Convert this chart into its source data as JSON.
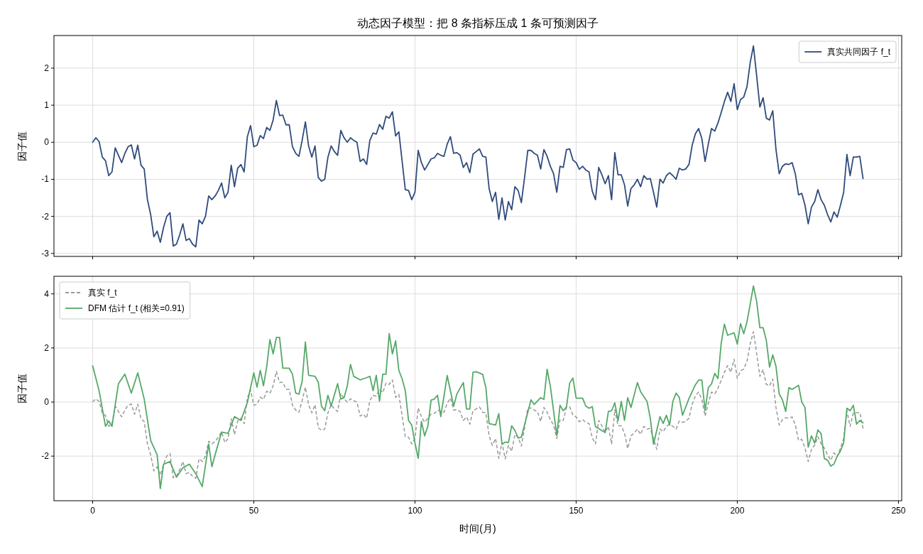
{
  "chart_data": [
    {
      "type": "line",
      "title": "动态因子模型：把 8 条指标压成 1 条可预测因子",
      "ylabel": "因子值",
      "xlim": [
        -12,
        251
      ],
      "xticks": [
        0,
        50,
        100,
        150,
        200,
        250
      ],
      "ylim": [
        -3.08,
        2.88
      ],
      "yticks": [
        -3,
        -2,
        -1,
        0,
        1,
        2
      ],
      "tick_labels": "y",
      "grid": true,
      "legend": "top right",
      "x": [
        0,
        1,
        2,
        3,
        4,
        5,
        6,
        7,
        8,
        9,
        10,
        11,
        12,
        13,
        14,
        15,
        16,
        17,
        18,
        19,
        20,
        21,
        22,
        23,
        24,
        25,
        26,
        27,
        28,
        29,
        30,
        31,
        32,
        33,
        34,
        35,
        36,
        37,
        38,
        39,
        40,
        41,
        42,
        43,
        44,
        45,
        46,
        47,
        48,
        49,
        50,
        51,
        52,
        53,
        54,
        55,
        56,
        57,
        58,
        59,
        60,
        61,
        62,
        63,
        64,
        65,
        66,
        67,
        68,
        69,
        70,
        71,
        72,
        73,
        74,
        75,
        76,
        77,
        78,
        79,
        80,
        81,
        82,
        83,
        84,
        85,
        86,
        87,
        88,
        89,
        90,
        91,
        92,
        93,
        94,
        95,
        96,
        97,
        98,
        99,
        100,
        101,
        102,
        103,
        104,
        105,
        106,
        107,
        108,
        109,
        110,
        111,
        112,
        113,
        114,
        115,
        116,
        117,
        118,
        119,
        120,
        121,
        122,
        123,
        124,
        125,
        126,
        127,
        128,
        129,
        130,
        131,
        132,
        133,
        134,
        135,
        136,
        137,
        138,
        139,
        140,
        141,
        142,
        143,
        144,
        145,
        146,
        147,
        148,
        149,
        150,
        151,
        152,
        153,
        154,
        155,
        156,
        157,
        158,
        159,
        160,
        161,
        162,
        163,
        164,
        165,
        166,
        167,
        168,
        169,
        170,
        171,
        172,
        173,
        174,
        175,
        176,
        177,
        178,
        179,
        180,
        181,
        182,
        183,
        184,
        185,
        186,
        187,
        188,
        189,
        190,
        191,
        192,
        193,
        194,
        195,
        196,
        197,
        198,
        199,
        200,
        201,
        202,
        203,
        204,
        205,
        206,
        207,
        208,
        209,
        210,
        211,
        212,
        213,
        214,
        215,
        216,
        217,
        218,
        219,
        220,
        221,
        222,
        223,
        224,
        225,
        226,
        227,
        228,
        229,
        230,
        231,
        232,
        233,
        234,
        235,
        236,
        237,
        238,
        239
      ],
      "series": [
        {
          "name": "真实共同因子 f_t",
          "color": "#2f4b7c",
          "line_style": "solid",
          "values": [
            0,
            0.12,
            0.02,
            -0.4,
            -0.5,
            -0.9,
            -0.8,
            -0.15,
            -0.35,
            -0.55,
            -0.3,
            -0.12,
            -0.07,
            -0.45,
            -0.08,
            -0.62,
            -0.72,
            -1.55,
            -1.95,
            -2.55,
            -2.4,
            -2.7,
            -2.3,
            -2.0,
            -1.9,
            -2.8,
            -2.75,
            -2.5,
            -2.2,
            -2.65,
            -2.6,
            -2.75,
            -2.82,
            -2.1,
            -2.2,
            -2.0,
            -1.45,
            -1.55,
            -1.45,
            -1.3,
            -1.1,
            -1.5,
            -1.35,
            -0.62,
            -1.2,
            -0.7,
            -0.6,
            -0.8,
            0.15,
            0.45,
            -0.12,
            -0.08,
            0.18,
            0.1,
            0.4,
            0.32,
            0.6,
            1.13,
            0.72,
            0.73,
            0.47,
            0.47,
            -0.12,
            -0.3,
            -0.38,
            0.05,
            0.55,
            -0.1,
            -0.4,
            -0.1,
            -0.95,
            -1.05,
            -1.0,
            -0.4,
            -0.1,
            -0.25,
            -0.35,
            0.32,
            0.12,
            0.0,
            0.12,
            0.05,
            0.0,
            -0.52,
            -0.45,
            -0.6,
            0.05,
            0.25,
            0.22,
            0.48,
            0.35,
            0.7,
            0.65,
            0.82,
            0.17,
            0.28,
            -0.5,
            -1.28,
            -1.3,
            -1.55,
            -1.35,
            -0.22,
            -0.55,
            -0.75,
            -0.6,
            -0.45,
            -0.42,
            -0.3,
            -0.35,
            -0.38,
            -0.05,
            0.15,
            -0.3,
            -0.28,
            -0.35,
            -0.68,
            -0.55,
            -0.82,
            -0.32,
            -0.25,
            -0.18,
            -0.38,
            -0.4,
            -1.25,
            -1.6,
            -1.35,
            -2.08,
            -1.5,
            -2.1,
            -1.6,
            -1.82,
            -1.2,
            -1.3,
            -1.63,
            -0.95,
            -0.22,
            -0.22,
            -0.3,
            -0.35,
            -0.72,
            -0.2,
            -0.38,
            -0.65,
            -0.85,
            -1.35,
            -0.65,
            -0.68,
            -0.2,
            -0.18,
            -0.48,
            -0.55,
            -0.73,
            -0.65,
            -0.75,
            -0.8,
            -1.32,
            -1.55,
            -0.68,
            -0.88,
            -1.12,
            -0.9,
            -1.55,
            -0.28,
            -0.88,
            -0.88,
            -1.15,
            -1.72,
            -1.25,
            -1.15,
            -1.0,
            -1.2,
            -0.9,
            -1.0,
            -0.98,
            -1.35,
            -1.75,
            -1.0,
            -1.1,
            -0.9,
            -0.82,
            -0.9,
            -1.0,
            -0.7,
            -0.75,
            -0.72,
            -0.6,
            -0.08,
            0.23,
            0.37,
            0.1,
            -0.52,
            -0.05,
            0.37,
            0.3,
            0.52,
            0.8,
            1.1,
            1.35,
            1.1,
            1.58,
            0.88,
            1.15,
            1.22,
            1.5,
            2.15,
            2.6,
            1.8,
            0.95,
            1.2,
            0.65,
            0.6,
            0.85,
            -0.2,
            -0.85,
            -0.65,
            -0.58,
            -0.6,
            -0.55,
            -0.85,
            -1.42,
            -1.38,
            -1.7,
            -2.2,
            -1.75,
            -1.6,
            -1.28,
            -1.55,
            -1.7,
            -1.95,
            -2.15,
            -1.88,
            -2.02,
            -1.7,
            -1.35,
            -0.33,
            -0.9,
            -0.4,
            -0.4,
            -0.38,
            -0.98
          ]
        }
      ]
    },
    {
      "type": "line",
      "xlabel": "时间(月)",
      "ylabel": "因子值",
      "xlim": [
        -12,
        251
      ],
      "xticks": [
        0,
        50,
        100,
        150,
        200,
        250
      ],
      "ylim": [
        -3.65,
        4.65
      ],
      "yticks": [
        -2,
        0,
        2,
        4
      ],
      "grid": true,
      "legend": "top left",
      "x": [
        0,
        1,
        2,
        3,
        4,
        5,
        6,
        7,
        8,
        9,
        10,
        11,
        12,
        13,
        14,
        15,
        16,
        17,
        18,
        19,
        20,
        21,
        22,
        23,
        24,
        25,
        26,
        27,
        28,
        29,
        30,
        31,
        32,
        33,
        34,
        35,
        36,
        37,
        38,
        39,
        40,
        41,
        42,
        43,
        44,
        45,
        46,
        47,
        48,
        49,
        50,
        51,
        52,
        53,
        54,
        55,
        56,
        57,
        58,
        59,
        60,
        61,
        62,
        63,
        64,
        65,
        66,
        67,
        68,
        69,
        70,
        71,
        72,
        73,
        74,
        75,
        76,
        77,
        78,
        79,
        80,
        81,
        82,
        83,
        84,
        85,
        86,
        87,
        88,
        89,
        90,
        91,
        92,
        93,
        94,
        95,
        96,
        97,
        98,
        99,
        100,
        101,
        102,
        103,
        104,
        105,
        106,
        107,
        108,
        109,
        110,
        111,
        112,
        113,
        114,
        115,
        116,
        117,
        118,
        119,
        120,
        121,
        122,
        123,
        124,
        125,
        126,
        127,
        128,
        129,
        130,
        131,
        132,
        133,
        134,
        135,
        136,
        137,
        138,
        139,
        140,
        141,
        142,
        143,
        144,
        145,
        146,
        147,
        148,
        149,
        150,
        151,
        152,
        153,
        154,
        155,
        156,
        157,
        158,
        159,
        160,
        161,
        162,
        163,
        164,
        165,
        166,
        167,
        168,
        169,
        170,
        171,
        172,
        173,
        174,
        175,
        176,
        177,
        178,
        179,
        180,
        181,
        182,
        183,
        184,
        185,
        186,
        187,
        188,
        189,
        190,
        191,
        192,
        193,
        194,
        195,
        196,
        197,
        198,
        199,
        200,
        201,
        202,
        203,
        204,
        205,
        206,
        207,
        208,
        209,
        210,
        211,
        212,
        213,
        214,
        215,
        216,
        217,
        218,
        219,
        220,
        221,
        222,
        223,
        224,
        225,
        226,
        227,
        228,
        229,
        230,
        231,
        232,
        233,
        234,
        235,
        236,
        237,
        238,
        239
      ],
      "series": [
        {
          "name": "真实 f_t",
          "color": "#999999",
          "line_style": "dashed",
          "values": [
            0,
            0.12,
            0.02,
            -0.4,
            -0.5,
            -0.9,
            -0.8,
            -0.15,
            -0.35,
            -0.55,
            -0.3,
            -0.12,
            -0.07,
            -0.45,
            -0.08,
            -0.62,
            -0.72,
            -1.55,
            -1.95,
            -2.55,
            -2.4,
            -2.7,
            -2.3,
            -2.0,
            -1.9,
            -2.8,
            -2.75,
            -2.5,
            -2.2,
            -2.65,
            -2.6,
            -2.75,
            -2.82,
            -2.1,
            -2.2,
            -2.0,
            -1.45,
            -1.55,
            -1.45,
            -1.3,
            -1.1,
            -1.5,
            -1.35,
            -0.62,
            -1.2,
            -0.7,
            -0.6,
            -0.8,
            0.15,
            0.45,
            -0.12,
            -0.08,
            0.18,
            0.1,
            0.4,
            0.32,
            0.6,
            1.13,
            0.72,
            0.73,
            0.47,
            0.47,
            -0.12,
            -0.3,
            -0.38,
            0.05,
            0.55,
            -0.1,
            -0.4,
            -0.1,
            -0.95,
            -1.05,
            -1.0,
            -0.4,
            -0.1,
            -0.25,
            -0.35,
            0.32,
            0.12,
            0.0,
            0.12,
            0.05,
            0.0,
            -0.52,
            -0.45,
            -0.6,
            0.05,
            0.25,
            0.22,
            0.48,
            0.35,
            0.7,
            0.65,
            0.82,
            0.17,
            0.28,
            -0.5,
            -1.28,
            -1.3,
            -1.55,
            -1.35,
            -0.22,
            -0.55,
            -0.75,
            -0.6,
            -0.45,
            -0.42,
            -0.3,
            -0.35,
            -0.38,
            -0.05,
            0.15,
            -0.3,
            -0.28,
            -0.35,
            -0.68,
            -0.55,
            -0.82,
            -0.32,
            -0.25,
            -0.18,
            -0.38,
            -0.4,
            -1.25,
            -1.6,
            -1.35,
            -2.08,
            -1.5,
            -2.1,
            -1.6,
            -1.82,
            -1.2,
            -1.3,
            -1.63,
            -0.95,
            -0.22,
            -0.22,
            -0.3,
            -0.35,
            -0.72,
            -0.2,
            -0.38,
            -0.65,
            -0.85,
            -1.35,
            -0.65,
            -0.68,
            -0.2,
            -0.18,
            -0.48,
            -0.55,
            -0.73,
            -0.65,
            -0.75,
            -0.8,
            -1.32,
            -1.55,
            -0.68,
            -0.88,
            -1.12,
            -0.9,
            -1.55,
            -0.28,
            -0.88,
            -0.88,
            -1.15,
            -1.72,
            -1.25,
            -1.15,
            -1.0,
            -1.2,
            -0.9,
            -1.0,
            -0.98,
            -1.35,
            -1.75,
            -1.0,
            -1.1,
            -0.9,
            -0.82,
            -0.9,
            -1.0,
            -0.7,
            -0.75,
            -0.72,
            -0.6,
            -0.08,
            0.23,
            0.37,
            0.1,
            -0.52,
            -0.05,
            0.37,
            0.3,
            0.52,
            0.8,
            1.1,
            1.35,
            1.1,
            1.58,
            0.88,
            1.15,
            1.22,
            1.5,
            2.15,
            2.6,
            1.8,
            0.95,
            1.2,
            0.65,
            0.6,
            0.85,
            -0.2,
            -0.85,
            -0.65,
            -0.58,
            -0.6,
            -0.55,
            -0.85,
            -1.42,
            -1.38,
            -1.7,
            -2.2,
            -1.75,
            -1.6,
            -1.28,
            -1.55,
            -1.7,
            -1.95,
            -2.15,
            -1.88,
            -2.02,
            -1.7,
            -1.35,
            -0.33,
            -0.9,
            -0.4,
            -0.4,
            -0.38,
            -0.98
          ]
        },
        {
          "name": "DFM 估计 f_t (相关=0.91)",
          "color": "#55a868",
          "line_style": "solid",
          "x": [
            0,
            2,
            4,
            5,
            6,
            8,
            10,
            12,
            14,
            16,
            18,
            20,
            21,
            22,
            24,
            26,
            28,
            30,
            32,
            34,
            36,
            37,
            38,
            40,
            42,
            44,
            46,
            48,
            50,
            51,
            52,
            53,
            54,
            55,
            56,
            57,
            58,
            59,
            61,
            62,
            63,
            64,
            65,
            66,
            67,
            69,
            70,
            71,
            72,
            73,
            74,
            76,
            77,
            78,
            79,
            80,
            81,
            83,
            85,
            86,
            87,
            88,
            89,
            90,
            91,
            92,
            93,
            94,
            95,
            96,
            97,
            98,
            99,
            100,
            101,
            102,
            103,
            104,
            105,
            106,
            107,
            108,
            110,
            112,
            113,
            115,
            116,
            117,
            118,
            119,
            121,
            122,
            123,
            125,
            126,
            127,
            128,
            129,
            130,
            131,
            132,
            133,
            136,
            137,
            139,
            140,
            141,
            142,
            144,
            145,
            146,
            147,
            148,
            149,
            150,
            152,
            153,
            154,
            155,
            156,
            159,
            160,
            161,
            162,
            163,
            164,
            165,
            166,
            167,
            169,
            170,
            172,
            173,
            174,
            176,
            177,
            178,
            179,
            180,
            181,
            182,
            183,
            185,
            187,
            188,
            189,
            190,
            191,
            192,
            193,
            194,
            195,
            196,
            197,
            199,
            200,
            201,
            202,
            203,
            205,
            206,
            207,
            208,
            209,
            210,
            211,
            212,
            213,
            214,
            215,
            216,
            217,
            219,
            220,
            221,
            222,
            223,
            224,
            225,
            226,
            227,
            228,
            229,
            230,
            231,
            232,
            233,
            234,
            235,
            236,
            237,
            238,
            239
          ],
          "values": [
            1.34,
            0.42,
            -0.9,
            -0.7,
            -0.9,
            0.68,
            1.03,
            0.33,
            1.08,
            0.11,
            -1.42,
            -1.95,
            -3.2,
            -2.3,
            -2.2,
            -2.78,
            -2.43,
            -2.3,
            -2.65,
            -3.13,
            -1.55,
            -2.39,
            -1.95,
            -1.11,
            -1.16,
            -0.54,
            -0.68,
            -0.02,
            1.08,
            0.55,
            1.17,
            0.6,
            1.3,
            2.31,
            1.78,
            2.39,
            2.39,
            1.25,
            1.25,
            1.03,
            0.33,
            0.29,
            0.77,
            2.22,
            0.99,
            0.95,
            0.73,
            -0.15,
            -0.32,
            0.25,
            -0.15,
            0.68,
            0.11,
            0.16,
            0.6,
            1.39,
            0.95,
            0.82,
            0.9,
            0.95,
            0.42,
            0.99,
            0.03,
            1.03,
            1.03,
            2.53,
            1.78,
            2.26,
            1.17,
            0.86,
            0.42,
            -0.68,
            -0.85,
            -1.51,
            -2.08,
            -0.72,
            -1.25,
            -0.89,
            0.07,
            0.11,
            0.25,
            -0.54,
            0.98,
            -0.15,
            0.3,
            0.72,
            -0.26,
            -0.26,
            1.1,
            1.12,
            1.02,
            0.53,
            -0.8,
            -0.85,
            -0.43,
            -1.56,
            -1.48,
            -1.5,
            -0.88,
            -1.05,
            -1.33,
            -1.3,
            0.08,
            -0.09,
            0.16,
            0.1,
            1.21,
            0.58,
            -1.24,
            -0.12,
            -0.32,
            -0.18,
            0.7,
            0.89,
            0.14,
            0.14,
            -0.15,
            -0.23,
            -0.17,
            -0.91,
            -1.13,
            -0.35,
            -0.32,
            -0.03,
            -0.69,
            0.02,
            -0.68,
            0.16,
            -0.2,
            0.72,
            0.38,
            0.02,
            -0.6,
            -1.56,
            -0.54,
            -0.79,
            -0.49,
            -0.85,
            0.02,
            0.33,
            0.17,
            -0.49,
            0.13,
            0.64,
            0.81,
            0.81,
            -0.32,
            0.53,
            0.67,
            1.06,
            0.87,
            2.17,
            2.88,
            2.47,
            2.56,
            2.14,
            2.9,
            2.53,
            2.96,
            4.29,
            3.72,
            2.75,
            2.75,
            2.28,
            1.29,
            1.74,
            1.32,
            0.3,
            0.08,
            -0.35,
            0.53,
            0.47,
            0.62,
            0,
            -0.2,
            -1.67,
            -1.25,
            -1.52,
            -1.03,
            -1.17,
            -2.09,
            -2.15,
            -2.37,
            -2.29,
            -2.0,
            -1.81,
            -1.5,
            -0.23,
            -0.32,
            -0.12,
            -0.82,
            -0.68,
            -0.77
          ]
        }
      ]
    }
  ]
}
